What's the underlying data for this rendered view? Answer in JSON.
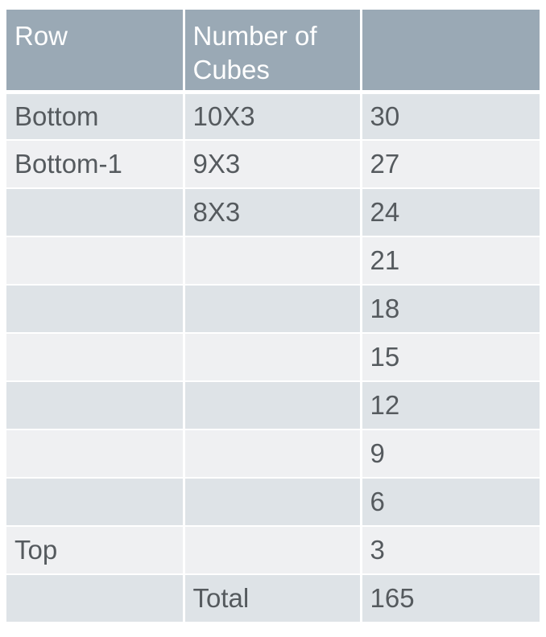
{
  "table": {
    "headers": [
      "Row",
      "Number of Cubes",
      ""
    ],
    "rows": [
      [
        "Bottom",
        "10X3",
        "30"
      ],
      [
        "Bottom-1",
        "9X3",
        "27"
      ],
      [
        "",
        "8X3",
        "24"
      ],
      [
        "",
        "",
        "21"
      ],
      [
        "",
        "",
        "18"
      ],
      [
        "",
        "",
        "15"
      ],
      [
        "",
        "",
        "12"
      ],
      [
        "",
        "",
        "9"
      ],
      [
        "",
        "",
        "6"
      ],
      [
        "Top",
        "",
        "3"
      ],
      [
        "",
        "Total",
        "165"
      ]
    ]
  },
  "colors": {
    "header_bg": "#9aa9b5",
    "row_odd_bg": "#dee3e7",
    "row_even_bg": "#eff0f2",
    "text": "#555a5e"
  }
}
